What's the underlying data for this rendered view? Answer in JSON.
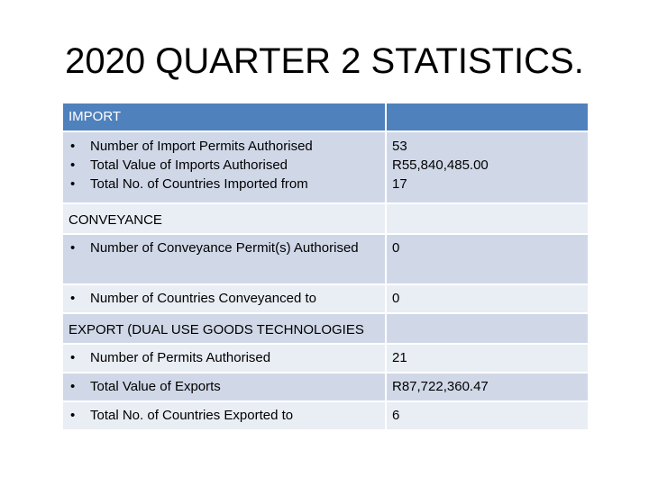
{
  "title": "2020 QUARTER 2 STATISTICS.",
  "import": {
    "header": "IMPORT",
    "items": [
      "Number of Import Permits Authorised",
      "Total Value of Imports Authorised",
      "Total No. of Countries Imported from"
    ],
    "values": [
      "53",
      "R55,840,485.00",
      "17"
    ]
  },
  "conveyance": {
    "header": "CONVEYANCE",
    "rows": [
      {
        "label": "Number of Conveyance Permit(s) Authorised",
        "value": "0"
      },
      {
        "label": "Number of Countries Conveyanced to",
        "value": "0"
      }
    ]
  },
  "export": {
    "header": "EXPORT (DUAL USE GOODS TECHNOLOGIES",
    "rows": [
      {
        "label": "Number of Permits Authorised",
        "value": "21"
      },
      {
        "label": "Total Value of Exports",
        "value": "R87,722,360.47"
      },
      {
        "label": "Total No. of Countries  Exported to",
        "value": "6"
      }
    ]
  }
}
